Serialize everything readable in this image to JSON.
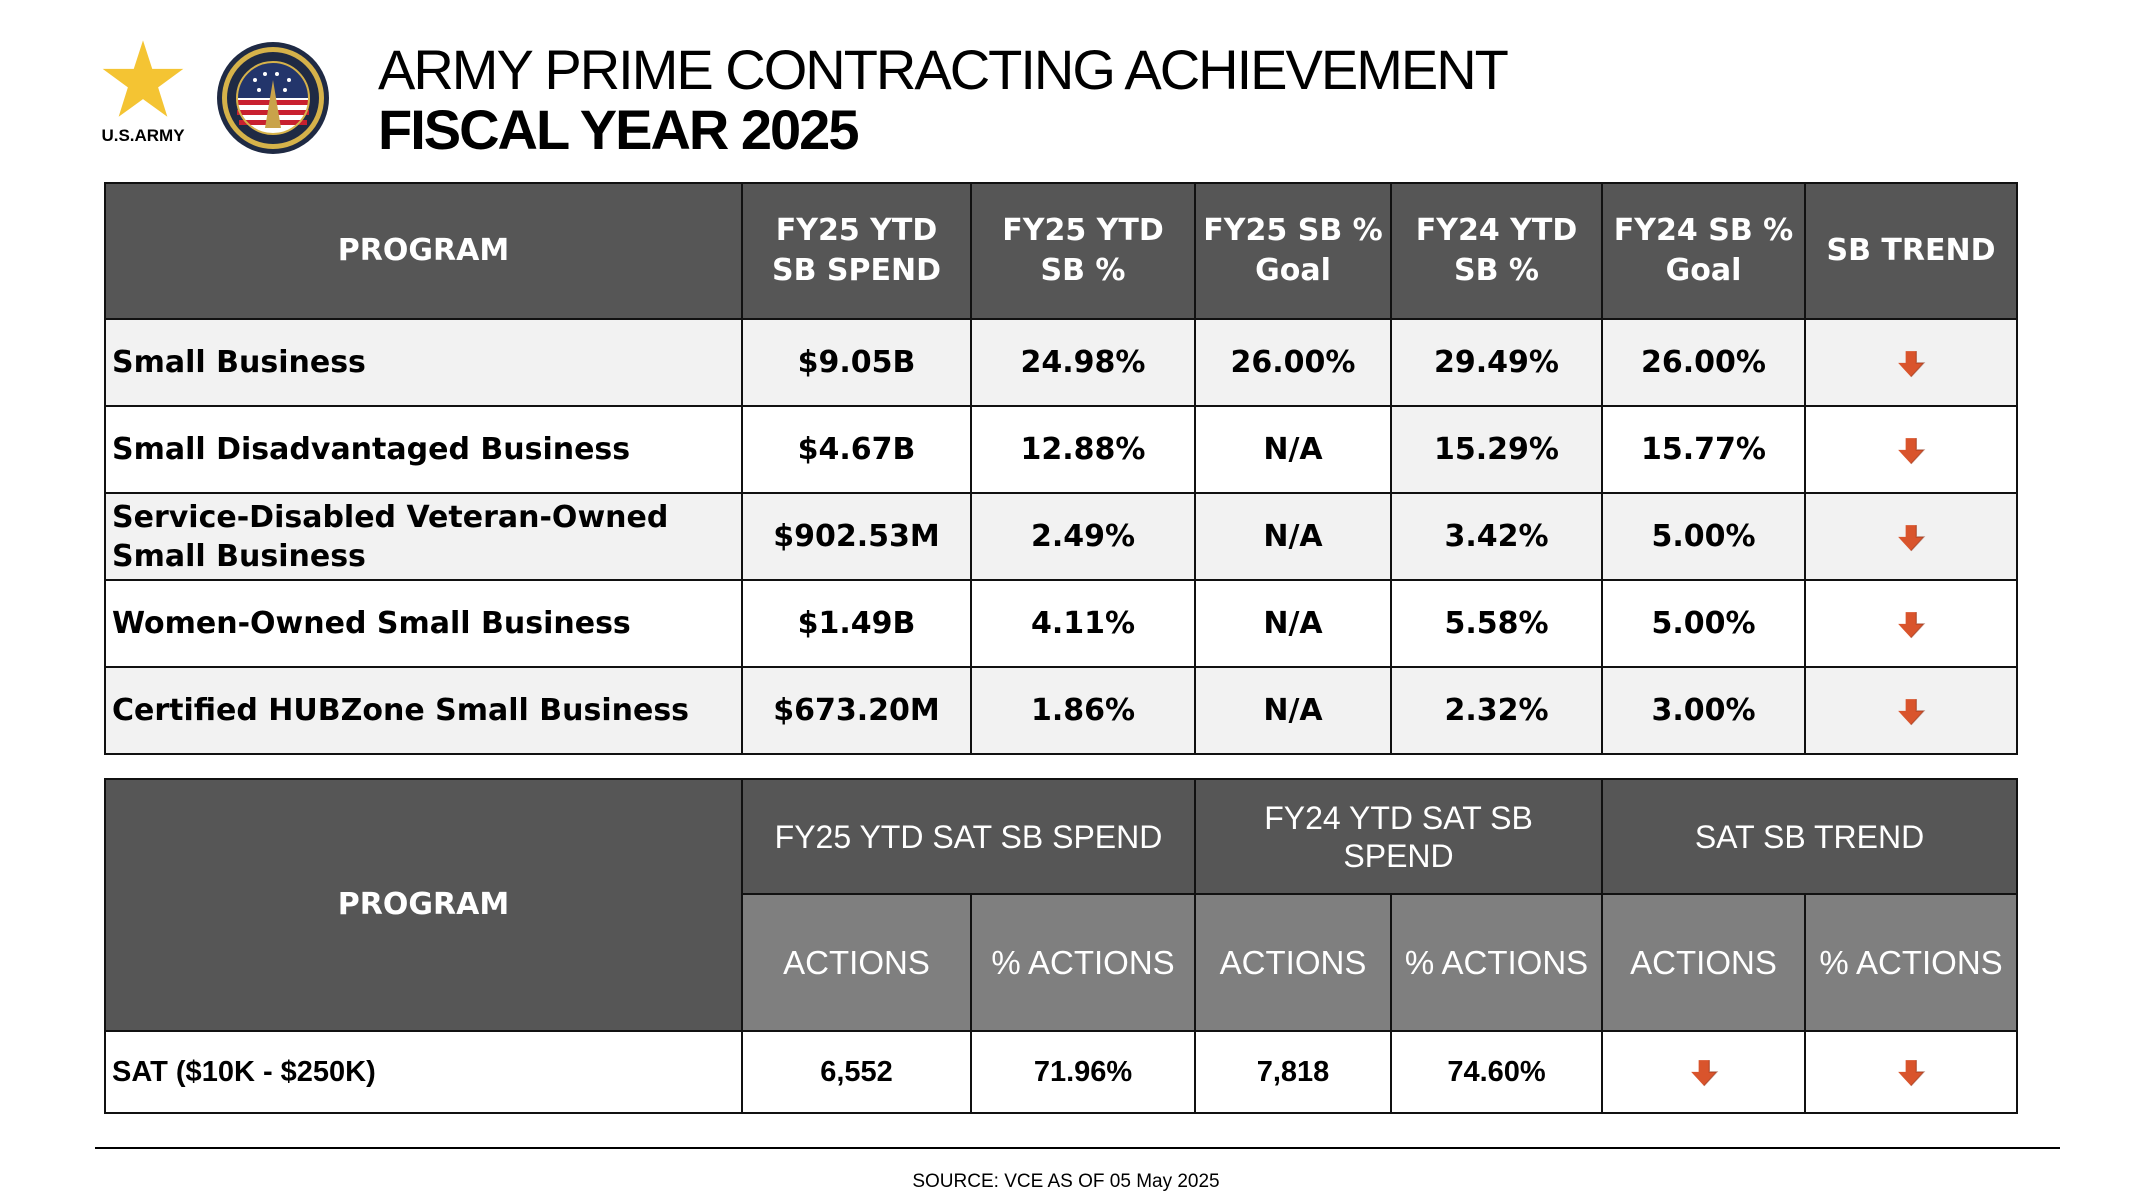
{
  "header": {
    "army_logo_text": "U.S.ARMY",
    "title_line1": "ARMY PRIME CONTRACTING ACHIEVEMENT",
    "title_line2": "FISCAL YEAR 2025"
  },
  "colors": {
    "header_bg": "#565656",
    "subheader_bg": "#7f7f7f",
    "row_shade": "#f2f2f2",
    "trend_arrow": "#d9542c",
    "army_star": "#f4c433"
  },
  "table1": {
    "headers": {
      "program": "PROGRAM",
      "fy25_spend_l1": "FY25 YTD",
      "fy25_spend_l2": "SB SPEND",
      "fy25_pct_l1": "FY25 YTD",
      "fy25_pct_l2": "SB %",
      "fy25_goal_l1": "FY25 SB %",
      "fy25_goal_l2": "Goal",
      "fy24_pct_l1": "FY24 YTD",
      "fy24_pct_l2": "SB %",
      "fy24_goal_l1": "FY24 SB %",
      "fy24_goal_l2": "Goal",
      "trend": "SB TREND"
    },
    "rows": [
      {
        "program_l1": "Small Business",
        "program_l2": "",
        "fy25_spend": "$9.05B",
        "fy25_pct": "24.98%",
        "fy25_goal": "26.00%",
        "fy24_pct": "29.49%",
        "fy24_goal": "26.00%",
        "trend": "down-arrow-icon"
      },
      {
        "program_l1": "Small Disadvantaged Business",
        "program_l2": "",
        "fy25_spend": "$4.67B",
        "fy25_pct": "12.88%",
        "fy25_goal": "N/A",
        "fy24_pct": "15.29%",
        "fy24_goal": "15.77%",
        "trend": "down-arrow-icon"
      },
      {
        "program_l1": "Service-Disabled Veteran-Owned",
        "program_l2": "Small Business",
        "fy25_spend": "$902.53M",
        "fy25_pct": "2.49%",
        "fy25_goal": "N/A",
        "fy24_pct": "3.42%",
        "fy24_goal": "5.00%",
        "trend": "down-arrow-icon"
      },
      {
        "program_l1": "Women-Owned Small Business",
        "program_l2": "",
        "fy25_spend": "$1.49B",
        "fy25_pct": "4.11%",
        "fy25_goal": "N/A",
        "fy24_pct": "5.58%",
        "fy24_goal": "5.00%",
        "trend": "down-arrow-icon"
      },
      {
        "program_l1": "Certified HUBZone Small Business",
        "program_l2": "",
        "fy25_spend": "$673.20M",
        "fy25_pct": "1.86%",
        "fy25_goal": "N/A",
        "fy24_pct": "2.32%",
        "fy24_goal": "3.00%",
        "trend": "down-arrow-icon"
      }
    ]
  },
  "table2": {
    "headers": {
      "program": "PROGRAM",
      "fy25_group": "FY25  YTD SAT SB SPEND",
      "fy24_group_l1": "FY24 YTD SAT SB",
      "fy24_group_l2": "SPEND",
      "trend_group": "SAT SB TREND",
      "actions": "ACTIONS",
      "pct_actions": "% ACTIONS"
    },
    "row": {
      "program": "SAT ($10K - $250K)",
      "fy25_actions": "6,552",
      "fy25_pct_actions": "71.96%",
      "fy24_actions": "7,818",
      "fy24_pct_actions": "74.60%",
      "trend_actions": "down-arrow-icon",
      "trend_pct_actions": "down-arrow-icon"
    }
  },
  "footer": {
    "source": "SOURCE: VCE AS OF 05 May 2025"
  }
}
